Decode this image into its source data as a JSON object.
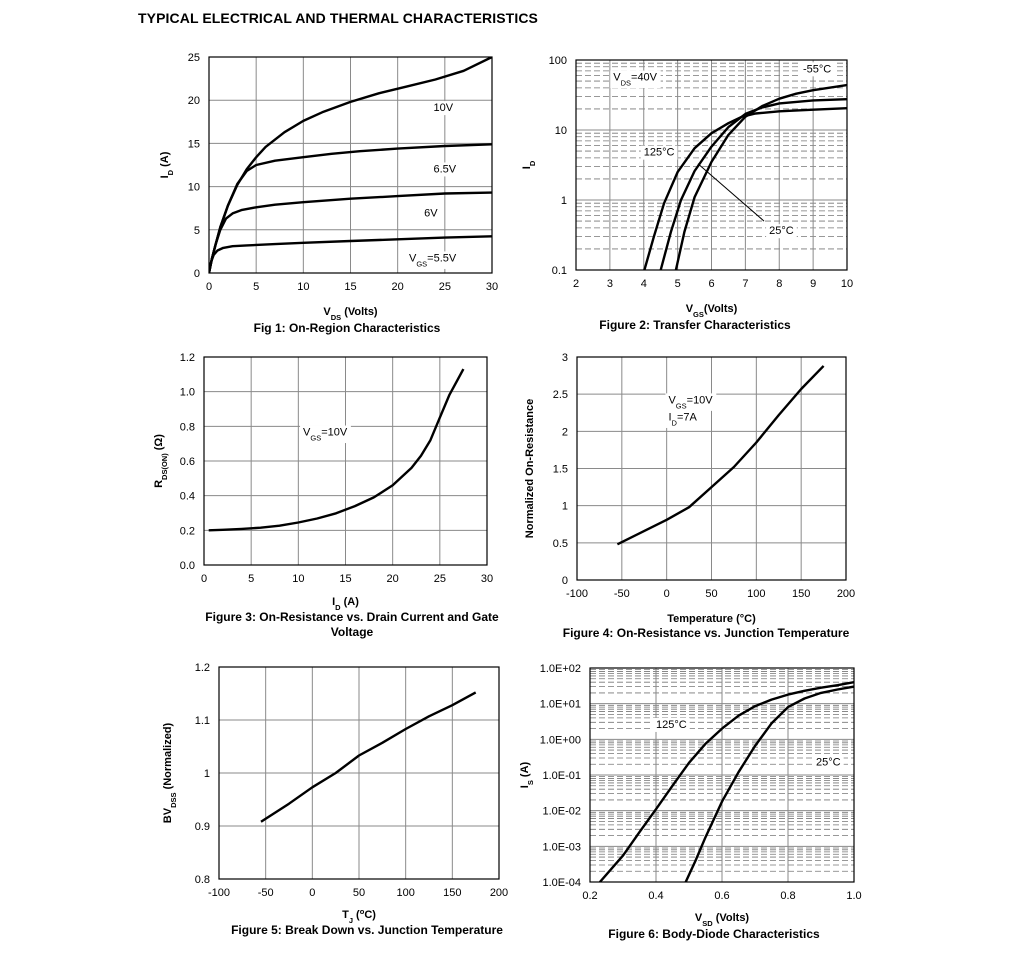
{
  "page_title": "TYPICAL ELECTRICAL AND THERMAL CHARACTERISTICS",
  "chart_data": [
    {
      "id": "fig1",
      "type": "line",
      "title": "Fig 1: On-Region Characteristics",
      "title_lines": [
        "Fig 1: On-Region Characteristics"
      ],
      "xlabel": {
        "main": "V",
        "sub": "DS",
        "rest": " (Volts)"
      },
      "ylabel": {
        "main": "I",
        "sub": "D",
        "rest": " (A)"
      },
      "xlim": [
        0,
        30
      ],
      "ylim": [
        0,
        25
      ],
      "xscale": "linear",
      "yscale": "linear",
      "xticks": [
        0,
        5,
        10,
        15,
        20,
        25,
        30
      ],
      "xtick_labels": [
        "0",
        "5",
        "10",
        "15",
        "20",
        "25",
        "30"
      ],
      "yticks": [
        0,
        5,
        10,
        15,
        20,
        25
      ],
      "ytick_labels": [
        "0",
        "5",
        "10",
        "15",
        "20",
        "25"
      ],
      "grid": true,
      "series": [
        {
          "x": [
            0,
            0.3,
            0.7,
            1.2,
            2,
            3,
            4,
            5,
            6,
            8,
            10,
            12,
            15,
            18,
            21,
            24,
            27,
            30
          ],
          "y": [
            0,
            1.6,
            3.3,
            5.3,
            7.8,
            10.2,
            12.0,
            13.4,
            14.6,
            16.3,
            17.6,
            18.6,
            19.8,
            20.8,
            21.6,
            22.4,
            23.4,
            25.0
          ]
        },
        {
          "x": [
            0,
            0.3,
            0.7,
            1.2,
            2,
            3,
            4,
            5,
            7,
            10,
            13,
            16,
            20,
            25,
            30
          ],
          "y": [
            0,
            1.6,
            3.3,
            5.3,
            7.8,
            10.3,
            11.8,
            12.5,
            13.0,
            13.4,
            13.8,
            14.1,
            14.4,
            14.7,
            14.9
          ]
        },
        {
          "x": [
            0,
            0.3,
            0.7,
            1.2,
            1.8,
            2.5,
            3.5,
            5,
            7,
            10,
            15,
            20,
            25,
            30
          ],
          "y": [
            0,
            1.6,
            3.3,
            5.0,
            6.3,
            6.9,
            7.3,
            7.6,
            7.9,
            8.2,
            8.6,
            8.9,
            9.2,
            9.3
          ]
        },
        {
          "x": [
            0,
            0.2,
            0.5,
            0.9,
            1.5,
            2.5,
            4,
            7,
            10,
            15,
            20,
            25,
            30
          ],
          "y": [
            0,
            1.2,
            2.1,
            2.6,
            2.9,
            3.1,
            3.2,
            3.35,
            3.5,
            3.7,
            3.9,
            4.1,
            4.25
          ]
        }
      ],
      "annotations": [
        {
          "text": "10V",
          "x": 23.8,
          "y": 19.2
        },
        {
          "text": "6.5V",
          "x": 23.8,
          "y": 12.1
        },
        {
          "text": "6V",
          "x": 22.8,
          "y": 7.0
        },
        {
          "text": "V",
          "sub": "GS",
          "rest": "=5.5V",
          "x": 21.2,
          "y": 1.8
        }
      ]
    },
    {
      "id": "fig2",
      "type": "line",
      "title": "Figure 2: Transfer Characteristics",
      "title_lines": [
        "Figure 2: Transfer Characteristics"
      ],
      "xlabel": {
        "main": "V",
        "sub": "GS",
        "rest": "(Volts)"
      },
      "ylabel": {
        "main": "I",
        "sub": "D",
        "rest": ""
      },
      "xlim": [
        2,
        10
      ],
      "ylim": [
        0.1,
        100
      ],
      "xscale": "linear",
      "yscale": "log",
      "xticks": [
        2,
        3,
        4,
        5,
        6,
        7,
        8,
        9,
        10
      ],
      "xtick_labels": [
        "2",
        "3",
        "4",
        "5",
        "6",
        "7",
        "8",
        "9",
        "10"
      ],
      "yticks": [
        0.1,
        1,
        10,
        100
      ],
      "ytick_labels": [
        "0.1",
        "1",
        "10",
        "100"
      ],
      "grid": true,
      "series": [
        {
          "name": "125°C",
          "x": [
            4.02,
            4.3,
            4.6,
            5.0,
            5.5,
            6.0,
            6.5,
            6.9,
            7.3,
            8.0,
            9.0,
            10.0
          ],
          "y": [
            0.1,
            0.3,
            0.9,
            2.5,
            5.5,
            9.0,
            12.5,
            15.5,
            17.2,
            18.5,
            19.5,
            20.5
          ]
        },
        {
          "name": "25°C",
          "x": [
            4.5,
            4.8,
            5.1,
            5.5,
            6.0,
            6.5,
            7.0,
            7.5,
            8.0,
            9.0,
            10.0
          ],
          "y": [
            0.1,
            0.35,
            1.0,
            2.6,
            5.8,
            11.0,
            17.0,
            21.0,
            24.0,
            26.5,
            27.5
          ]
        },
        {
          "name": "-55°C",
          "x": [
            4.95,
            5.2,
            5.5,
            6.0,
            6.5,
            7.0,
            7.5,
            8.0,
            8.5,
            9.0,
            10.0
          ],
          "y": [
            0.1,
            0.35,
            1.1,
            3.5,
            8.5,
            15.5,
            22.0,
            28.0,
            33.0,
            37.0,
            44.0
          ]
        }
      ],
      "annotations": [
        {
          "text": "V",
          "sub": "DS",
          "rest": "=40V",
          "x": 3.1,
          "y": 58
        },
        {
          "text": "-55°C",
          "x": 8.7,
          "y": 76
        },
        {
          "text": "125°C",
          "x": 4.0,
          "y": 4.9
        },
        {
          "text": "25°C",
          "x": 7.7,
          "y": 0.37
        }
      ]
    },
    {
      "id": "fig3",
      "type": "line",
      "title": "Figure 3: On-Resistance vs. Drain Current and Gate Voltage",
      "title_lines": [
        "Figure 3: On-Resistance vs. Drain Current and Gate",
        "Voltage"
      ],
      "xlabel": {
        "main": "I",
        "sub": "D",
        "rest": " (A)"
      },
      "ylabel": {
        "main": "R",
        "sub": "DS(ON)",
        "rest": " (Ω)"
      },
      "xlim": [
        0,
        30
      ],
      "ylim": [
        0,
        1.2
      ],
      "xscale": "linear",
      "yscale": "linear",
      "xticks": [
        0,
        5,
        10,
        15,
        20,
        25,
        30
      ],
      "xtick_labels": [
        "0",
        "5",
        "10",
        "15",
        "20",
        "25",
        "30"
      ],
      "yticks": [
        0,
        0.2,
        0.4,
        0.6,
        0.8,
        1.0,
        1.2
      ],
      "ytick_labels": [
        "0.0",
        "0.2",
        "0.4",
        "0.6",
        "0.8",
        "1.0",
        "1.2"
      ],
      "grid": true,
      "series": [
        {
          "x": [
            0.5,
            2,
            4,
            6,
            8,
            10,
            12,
            14,
            16,
            18,
            20,
            22,
            23,
            24,
            25,
            26,
            27.5
          ],
          "y": [
            0.2,
            0.203,
            0.208,
            0.215,
            0.227,
            0.245,
            0.268,
            0.298,
            0.34,
            0.39,
            0.46,
            0.56,
            0.63,
            0.72,
            0.85,
            0.98,
            1.13
          ]
        }
      ],
      "annotations": [
        {
          "text": "V",
          "sub": "GS",
          "rest": "=10V",
          "x": 10.5,
          "y": 0.77
        }
      ]
    },
    {
      "id": "fig4",
      "type": "line",
      "title": "Figure 4: On-Resistance vs. Junction Temperature",
      "title_lines": [
        "Figure 4: On-Resistance vs. Junction Temperature"
      ],
      "xlabel": {
        "main": "Temperature (°C)",
        "sub": "",
        "rest": ""
      },
      "ylabel": {
        "main": "Normalized On-Resistance",
        "sub": "",
        "rest": ""
      },
      "xlim": [
        -100,
        200
      ],
      "ylim": [
        0,
        3
      ],
      "xscale": "linear",
      "yscale": "linear",
      "xticks": [
        -100,
        -50,
        0,
        50,
        100,
        150,
        200
      ],
      "xtick_labels": [
        "-100",
        "-50",
        "0",
        "50",
        "100",
        "150",
        "200"
      ],
      "yticks": [
        0,
        0.5,
        1,
        1.5,
        2,
        2.5,
        3
      ],
      "ytick_labels": [
        "0",
        "0.5",
        "1",
        "1.5",
        "2",
        "2.5",
        "3"
      ],
      "grid": true,
      "series": [
        {
          "x": [
            -55,
            -25,
            0,
            25,
            50,
            75,
            100,
            125,
            150,
            175
          ],
          "y": [
            0.48,
            0.66,
            0.81,
            0.98,
            1.25,
            1.52,
            1.85,
            2.22,
            2.57,
            2.88
          ]
        }
      ],
      "annotations": [
        {
          "text": "V",
          "sub": "GS",
          "rest": "=10V",
          "x": 2,
          "y": 2.43
        },
        {
          "text": "I",
          "sub": "D",
          "rest": "=7A",
          "x": 2,
          "y": 2.2
        }
      ]
    },
    {
      "id": "fig5",
      "type": "line",
      "title": "Figure 5: Break Down vs. Junction Temperature",
      "title_lines": [
        "Figure 5: Break Down vs. Junction Temperature"
      ],
      "xlabel": {
        "main": "T",
        "sub": "J",
        "rest": " (",
        "sup": "o",
        "rest2": "C)"
      },
      "ylabel": {
        "main": "BV",
        "sub": "DSS",
        "rest": " (Normalized)"
      },
      "xlim": [
        -100,
        200
      ],
      "ylim": [
        0.8,
        1.2
      ],
      "xscale": "linear",
      "yscale": "linear",
      "xticks": [
        -100,
        -50,
        0,
        50,
        100,
        150,
        200
      ],
      "xtick_labels": [
        "-100",
        "-50",
        "0",
        "50",
        "100",
        "150",
        "200"
      ],
      "yticks": [
        0.8,
        0.9,
        1.0,
        1.1,
        1.2
      ],
      "ytick_labels": [
        "0.8",
        "0.9",
        "1",
        "1.1",
        "1.2"
      ],
      "grid": true,
      "series": [
        {
          "x": [
            -55,
            -25,
            0,
            25,
            50,
            75,
            100,
            125,
            150,
            175
          ],
          "y": [
            0.908,
            0.942,
            0.973,
            1.0,
            1.033,
            1.057,
            1.083,
            1.107,
            1.128,
            1.152
          ]
        }
      ],
      "annotations": []
    },
    {
      "id": "fig6",
      "type": "line",
      "title": "Figure 6: Body-Diode Characteristics",
      "title_lines": [
        "Figure 6: Body-Diode Characteristics"
      ],
      "xlabel": {
        "main": "V",
        "sub": "SD",
        "rest": " (Volts)"
      },
      "ylabel": {
        "main": "I",
        "sub": "S",
        "rest": " (A)"
      },
      "xlim": [
        0.2,
        1.0
      ],
      "ylim": [
        0.0001,
        100
      ],
      "xscale": "linear",
      "yscale": "log",
      "xticks": [
        0.2,
        0.4,
        0.6,
        0.8,
        1.0
      ],
      "xtick_labels": [
        "0.2",
        "0.4",
        "0.6",
        "0.8",
        "1.0"
      ],
      "yticks": [
        0.0001,
        0.001,
        0.01,
        0.1,
        1,
        10,
        100
      ],
      "ytick_labels": [
        "1.0E-04",
        "1.0E-03",
        "1.0E-02",
        "1.0E-01",
        "1.0E+00",
        "1.0E+01",
        "1.0E+02"
      ],
      "grid": true,
      "series": [
        {
          "name": "125°C",
          "x": [
            0.23,
            0.3,
            0.35,
            0.4,
            0.45,
            0.5,
            0.55,
            0.6,
            0.65,
            0.7,
            0.75,
            0.8,
            0.85,
            0.9,
            0.95,
            1.0
          ],
          "y": [
            0.0001,
            0.00055,
            0.0025,
            0.011,
            0.05,
            0.22,
            0.75,
            2.0,
            4.6,
            8.5,
            13,
            18,
            23,
            28,
            33,
            40
          ]
        },
        {
          "name": "25°C",
          "x": [
            0.49,
            0.52,
            0.55,
            0.6,
            0.65,
            0.7,
            0.75,
            0.8,
            0.85,
            0.9,
            0.95,
            1.0
          ],
          "y": [
            0.0001,
            0.0004,
            0.0018,
            0.018,
            0.12,
            0.65,
            2.8,
            8.0,
            14,
            20,
            25,
            30
          ]
        }
      ],
      "annotations": [
        {
          "text": "125°C",
          "x": 0.4,
          "y": 2.7
        },
        {
          "text": "25°C",
          "x": 0.885,
          "y": 0.24
        }
      ]
    }
  ]
}
